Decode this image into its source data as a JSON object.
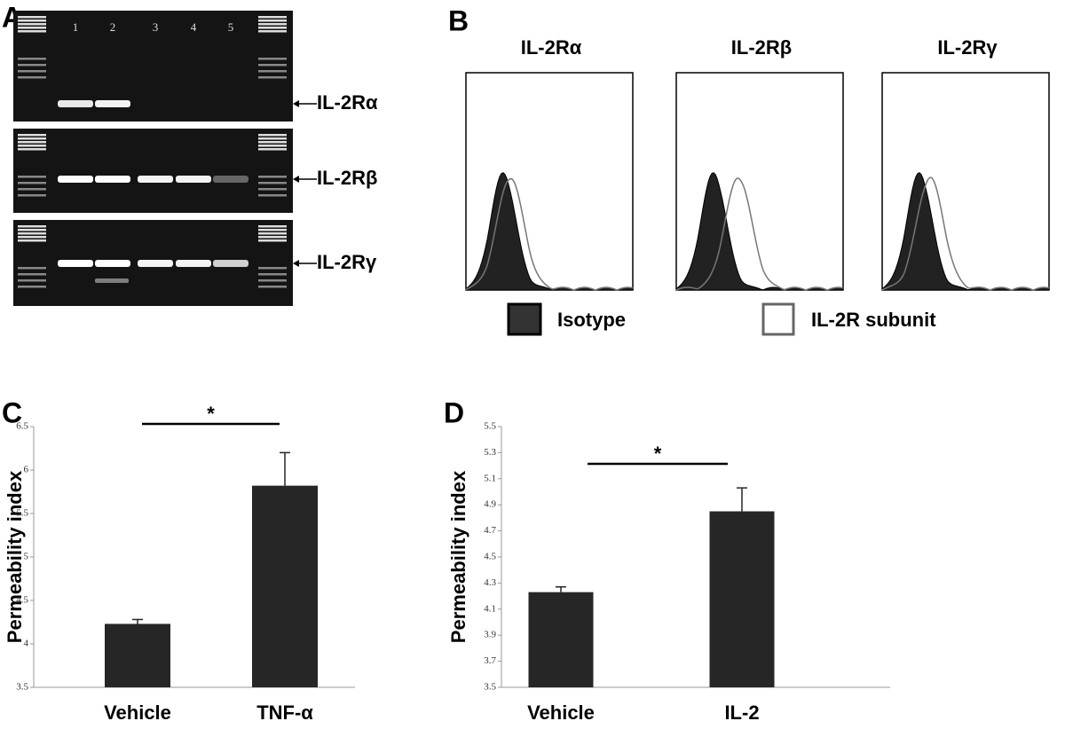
{
  "gel": {
    "panel": "A",
    "lanes": [
      "1",
      "2",
      "3",
      "4",
      "5"
    ],
    "bands": [
      "IL-2Rα",
      "IL-2Rβ",
      "IL-2Rγ"
    ]
  },
  "flow": {
    "panel": "B",
    "titles": [
      "IL-2Rα",
      "IL-2Rβ",
      "IL-2Rγ"
    ],
    "legend": [
      "Isotype",
      "IL-2R subunit"
    ]
  },
  "chart_data": [
    {
      "type": "bar",
      "panel": "C",
      "ylabel": "Permeability index",
      "categories": [
        "Vehicle",
        "TNF-α"
      ],
      "values": [
        4.23,
        5.82
      ],
      "errors": [
        0.05,
        0.38
      ],
      "color": "#262626",
      "ylim": [
        3.5,
        6.5
      ],
      "yticks": [
        3.5,
        4,
        4.5,
        5,
        5.5,
        6,
        6.5
      ],
      "annotation": "*"
    },
    {
      "type": "bar",
      "panel": "D",
      "ylabel": "Permeability index",
      "categories": [
        "Vehicle",
        "IL-2"
      ],
      "values": [
        4.23,
        4.85
      ],
      "errors": [
        0.04,
        0.18
      ],
      "color": "#262626",
      "ylim": [
        3.5,
        5.5
      ],
      "yticks": [
        3.5,
        3.7,
        3.9,
        4.1,
        4.3,
        4.5,
        4.7,
        4.9,
        5.1,
        5.3,
        5.5
      ],
      "annotation": "*"
    }
  ]
}
